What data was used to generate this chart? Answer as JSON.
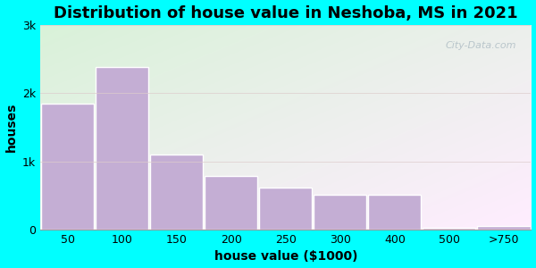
{
  "title": "Distribution of house value in Neshoba, MS in 2021",
  "xlabel": "house value ($1000)",
  "ylabel": "houses",
  "categories": [
    "50",
    "100",
    "150",
    "200",
    "250",
    "300",
    "400",
    "500",
    ">750"
  ],
  "values": [
    1850,
    2380,
    1100,
    780,
    620,
    510,
    510,
    30,
    50
  ],
  "bar_color": "#c4aed4",
  "bar_edge_color": "#ffffff",
  "figure_bg": "#00ffff",
  "title_fontsize": 13,
  "axis_label_fontsize": 10,
  "tick_fontsize": 9,
  "ylim": [
    0,
    3000
  ],
  "yticks": [
    0,
    1000,
    2000,
    3000
  ],
  "ytick_labels": [
    "0",
    "1k",
    "2k",
    "3k"
  ],
  "watermark": "City-Data.com",
  "grad_top_left": "#d8eed8",
  "grad_bottom_right": "#f0faf8"
}
